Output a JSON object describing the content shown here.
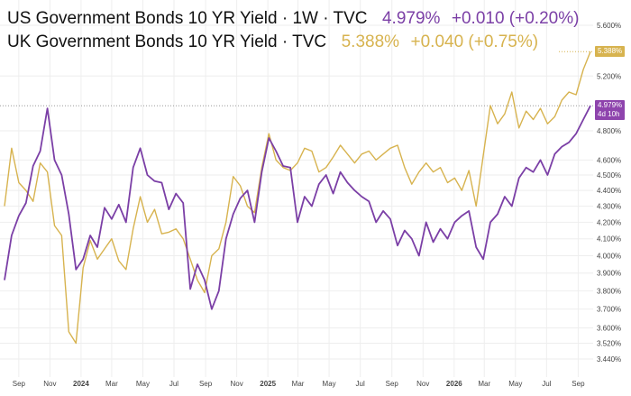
{
  "legend": {
    "us": {
      "title": "US Government Bonds 10 YR Yield · 1W · TVC",
      "value": "4.979%",
      "change": "+0.010 (+0.20%)"
    },
    "uk": {
      "title": "UK Government Bonds 10 YR Yield · TVC",
      "value": "5.388%",
      "change": "+0.040 (+0.75%)"
    }
  },
  "colors": {
    "us": "#7b3fa6",
    "uk": "#d7b34f",
    "grid": "#eeeeee",
    "axis_text": "#444444",
    "badge_us": "#8e44ad",
    "badge_uk": "#d7b34f"
  },
  "chart_data": {
    "type": "line",
    "title": "",
    "xlabel": "",
    "ylabel": "",
    "y_scale": "log",
    "ylim": [
      3.4,
      5.7
    ],
    "y_ticks": [
      "5.600%",
      "5.200%",
      "4.800%",
      "4.600%",
      "4.500%",
      "4.400%",
      "4.300%",
      "4.200%",
      "4.100%",
      "4.000%",
      "3.900%",
      "3.800%",
      "3.700%",
      "3.600%",
      "3.520%",
      "3.440%"
    ],
    "x_ticks": [
      "Sep",
      "Nov",
      "2024",
      "Mar",
      "May",
      "Jul",
      "Sep",
      "Nov",
      "2025",
      "Mar",
      "May",
      "Jul",
      "Sep",
      "Nov",
      "2026",
      "Mar",
      "May",
      "Jul",
      "Sep"
    ],
    "grid": true,
    "series": [
      {
        "name": "US Government Bonds 10 YR Yield",
        "last_label": "4.979%",
        "countdown": "4d 10h",
        "x": [
          "2023-08-04",
          "2023-08-18",
          "2023-09-01",
          "2023-09-15",
          "2023-09-29",
          "2023-10-13",
          "2023-10-27",
          "2023-11-10",
          "2023-11-24",
          "2023-12-08",
          "2023-12-22",
          "2024-01-05",
          "2024-01-19",
          "2024-02-02",
          "2024-02-16",
          "2024-03-01",
          "2024-03-15",
          "2024-03-29",
          "2024-04-12",
          "2024-04-26",
          "2024-05-10",
          "2024-05-24",
          "2024-06-07",
          "2024-06-21",
          "2024-07-05",
          "2024-07-19",
          "2024-08-02",
          "2024-08-16",
          "2024-08-30",
          "2024-09-13",
          "2024-09-27",
          "2024-10-11",
          "2024-10-25",
          "2024-11-08",
          "2024-11-22",
          "2024-12-06",
          "2024-12-20",
          "2025-01-03",
          "2025-01-17",
          "2025-01-31",
          "2025-02-14",
          "2025-02-28",
          "2025-03-14",
          "2025-03-28",
          "2025-04-11",
          "2025-04-25",
          "2025-05-09",
          "2025-05-23",
          "2025-06-06",
          "2025-06-20",
          "2025-07-04",
          "2025-07-18",
          "2025-08-01",
          "2025-08-15",
          "2025-08-29",
          "2025-09-12",
          "2025-09-26",
          "2025-10-10",
          "2025-10-24",
          "2025-11-07",
          "2025-11-21",
          "2025-12-05",
          "2025-12-19",
          "2026-01-02",
          "2026-01-16",
          "2026-01-30",
          "2026-02-13",
          "2026-02-27",
          "2026-03-13",
          "2026-03-27",
          "2026-04-10",
          "2026-04-24",
          "2026-05-08",
          "2026-05-22",
          "2026-06-05",
          "2026-06-19",
          "2026-07-03",
          "2026-07-17",
          "2026-07-31",
          "2026-08-14",
          "2026-08-28",
          "2026-09-11",
          "2026-09-25"
        ],
        "y": [
          3.86,
          4.12,
          4.24,
          4.32,
          4.56,
          4.66,
          4.96,
          4.6,
          4.5,
          4.25,
          3.92,
          3.98,
          4.12,
          4.05,
          4.29,
          4.22,
          4.31,
          4.2,
          4.55,
          4.68,
          4.5,
          4.46,
          4.45,
          4.28,
          4.38,
          4.32,
          3.81,
          3.95,
          3.86,
          3.7,
          3.8,
          4.1,
          4.25,
          4.35,
          4.4,
          4.2,
          4.52,
          4.75,
          4.66,
          4.56,
          4.55,
          4.2,
          4.36,
          4.3,
          4.44,
          4.5,
          4.38,
          4.52,
          4.45,
          4.4,
          4.36,
          4.33,
          4.2,
          4.27,
          4.22,
          4.06,
          4.15,
          4.1,
          4.0,
          4.2,
          4.08,
          4.16,
          4.1,
          4.2,
          4.24,
          4.27,
          4.05,
          3.98,
          4.2,
          4.25,
          4.36,
          4.3,
          4.48,
          4.55,
          4.52,
          4.6,
          4.5,
          4.64,
          4.69,
          4.72,
          4.78,
          4.88,
          4.979
        ]
      },
      {
        "name": "UK Government Bonds 10 YR Yield",
        "last_label": "5.388%",
        "x": [
          "2023-08-04",
          "2023-08-18",
          "2023-09-01",
          "2023-09-15",
          "2023-09-29",
          "2023-10-13",
          "2023-10-27",
          "2023-11-10",
          "2023-11-24",
          "2023-12-08",
          "2023-12-22",
          "2024-01-05",
          "2024-01-19",
          "2024-02-02",
          "2024-02-16",
          "2024-03-01",
          "2024-03-15",
          "2024-03-29",
          "2024-04-12",
          "2024-04-26",
          "2024-05-10",
          "2024-05-24",
          "2024-06-07",
          "2024-06-21",
          "2024-07-05",
          "2024-07-19",
          "2024-08-02",
          "2024-08-16",
          "2024-08-30",
          "2024-09-13",
          "2024-09-27",
          "2024-10-11",
          "2024-10-25",
          "2024-11-08",
          "2024-11-22",
          "2024-12-06",
          "2024-12-20",
          "2025-01-03",
          "2025-01-17",
          "2025-01-31",
          "2025-02-14",
          "2025-02-28",
          "2025-03-14",
          "2025-03-28",
          "2025-04-11",
          "2025-04-25",
          "2025-05-09",
          "2025-05-23",
          "2025-06-06",
          "2025-06-20",
          "2025-07-04",
          "2025-07-18",
          "2025-08-01",
          "2025-08-15",
          "2025-08-29",
          "2025-09-12",
          "2025-09-26",
          "2025-10-10",
          "2025-10-24",
          "2025-11-07",
          "2025-11-21",
          "2025-12-05",
          "2025-12-19",
          "2026-01-02",
          "2026-01-16",
          "2026-01-30",
          "2026-02-13",
          "2026-02-27",
          "2026-03-13",
          "2026-03-27",
          "2026-04-10",
          "2026-04-24",
          "2026-05-08",
          "2026-05-22",
          "2026-06-05",
          "2026-06-19",
          "2026-07-03",
          "2026-07-17",
          "2026-07-31",
          "2026-08-14",
          "2026-08-28",
          "2026-09-11",
          "2026-09-25"
        ],
        "y": [
          4.3,
          4.68,
          4.45,
          4.4,
          4.33,
          4.58,
          4.52,
          4.18,
          4.12,
          3.58,
          3.52,
          3.93,
          4.09,
          3.98,
          4.04,
          4.1,
          3.97,
          3.92,
          4.16,
          4.36,
          4.2,
          4.28,
          4.13,
          4.14,
          4.16,
          4.1,
          3.98,
          3.86,
          3.79,
          4.0,
          4.04,
          4.2,
          4.49,
          4.43,
          4.3,
          4.26,
          4.55,
          4.78,
          4.6,
          4.55,
          4.53,
          4.58,
          4.68,
          4.66,
          4.52,
          4.55,
          4.62,
          4.7,
          4.64,
          4.58,
          4.64,
          4.66,
          4.6,
          4.64,
          4.68,
          4.7,
          4.55,
          4.44,
          4.52,
          4.58,
          4.52,
          4.55,
          4.45,
          4.48,
          4.4,
          4.53,
          4.3,
          4.63,
          4.98,
          4.85,
          4.92,
          5.08,
          4.82,
          4.94,
          4.88,
          4.96,
          4.85,
          4.9,
          5.02,
          5.08,
          5.06,
          5.25,
          5.388
        ]
      }
    ]
  }
}
